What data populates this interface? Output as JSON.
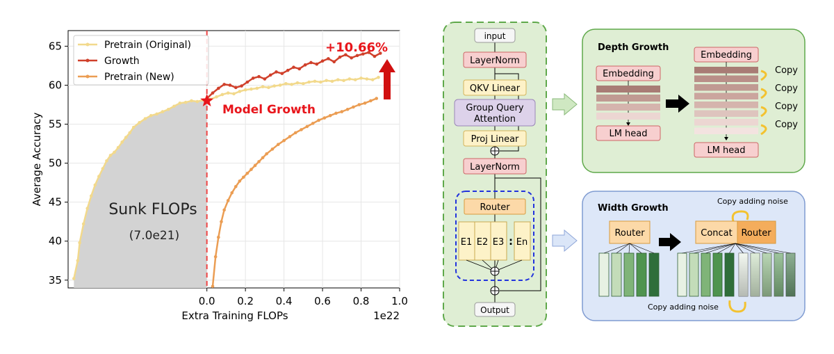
{
  "chart_data": {
    "type": "line",
    "title": "",
    "xlabel": "Extra Training FLOPs",
    "ylabel": "Average Accuracy",
    "x_offset_label": "1e22",
    "xlim": [
      -0.72,
      1.0
    ],
    "ylim": [
      34,
      67
    ],
    "xticks": [
      0.0,
      0.2,
      0.4,
      0.6,
      0.8,
      1.0
    ],
    "xtick_labels": [
      "0.0",
      "0.2",
      "0.4",
      "0.6",
      "0.8",
      "1.0"
    ],
    "yticks": [
      35,
      40,
      45,
      50,
      55,
      60,
      65
    ],
    "ytick_labels": [
      "35",
      "40",
      "45",
      "50",
      "55",
      "60",
      "65"
    ],
    "grid": true,
    "legend_position": "top-left",
    "series": [
      {
        "name": "Pretrain (Original)",
        "color": "#f2d98c",
        "x": [
          -0.69,
          -0.67,
          -0.66,
          -0.64,
          -0.62,
          -0.6,
          -0.58,
          -0.56,
          -0.54,
          -0.52,
          -0.5,
          -0.48,
          -0.46,
          -0.44,
          -0.42,
          -0.4,
          -0.38,
          -0.35,
          -0.32,
          -0.29,
          -0.26,
          -0.23,
          -0.2,
          -0.17,
          -0.14,
          -0.11,
          -0.08,
          -0.05,
          -0.02,
          0.0,
          0.02,
          0.05,
          0.08,
          0.11,
          0.14,
          0.17,
          0.2,
          0.23,
          0.26,
          0.29,
          0.32,
          0.35,
          0.38,
          0.41,
          0.44,
          0.47,
          0.5,
          0.53,
          0.56,
          0.59,
          0.62,
          0.65,
          0.68,
          0.71,
          0.74,
          0.77,
          0.8,
          0.83,
          0.86,
          0.89
        ],
        "values": [
          35.2,
          37.5,
          39.8,
          42.2,
          44.2,
          45.8,
          47.2,
          48.3,
          49.3,
          50.3,
          51.0,
          51.4,
          52.0,
          52.7,
          53.3,
          53.9,
          54.6,
          55.2,
          55.7,
          56.1,
          56.3,
          56.6,
          56.9,
          57.3,
          57.7,
          57.8,
          58.0,
          57.9,
          58.1,
          58.3,
          58.2,
          58.5,
          58.8,
          59.0,
          58.9,
          59.2,
          59.4,
          59.5,
          59.6,
          59.8,
          59.7,
          59.9,
          60.0,
          60.2,
          60.1,
          60.3,
          60.2,
          60.4,
          60.5,
          60.4,
          60.6,
          60.5,
          60.7,
          60.6,
          60.8,
          60.7,
          60.9,
          60.8,
          60.7,
          61.0
        ]
      },
      {
        "name": "Growth",
        "color": "#d0402b",
        "x": [
          0.0,
          0.03,
          0.06,
          0.09,
          0.12,
          0.15,
          0.18,
          0.21,
          0.24,
          0.27,
          0.3,
          0.33,
          0.36,
          0.39,
          0.42,
          0.45,
          0.48,
          0.51,
          0.54,
          0.57,
          0.6,
          0.63,
          0.66,
          0.69,
          0.72,
          0.75,
          0.78,
          0.81,
          0.84,
          0.87,
          0.9
        ],
        "values": [
          58.3,
          59.0,
          59.6,
          60.1,
          60.0,
          59.7,
          59.9,
          60.4,
          60.9,
          61.1,
          60.8,
          61.3,
          61.7,
          61.5,
          61.9,
          62.3,
          62.1,
          62.6,
          62.9,
          62.7,
          63.1,
          63.4,
          63.0,
          63.6,
          63.9,
          63.5,
          63.8,
          64.0,
          64.2,
          63.7,
          64.1
        ]
      },
      {
        "name": "Pretrain (New)",
        "color": "#eb9d53",
        "x": [
          0.03,
          0.045,
          0.06,
          0.075,
          0.09,
          0.11,
          0.13,
          0.15,
          0.17,
          0.19,
          0.21,
          0.23,
          0.25,
          0.27,
          0.29,
          0.31,
          0.34,
          0.37,
          0.4,
          0.43,
          0.46,
          0.49,
          0.52,
          0.55,
          0.58,
          0.61,
          0.64,
          0.67,
          0.7,
          0.73,
          0.76,
          0.79,
          0.82,
          0.85,
          0.88
        ],
        "values": [
          34.2,
          38.0,
          40.5,
          42.5,
          44.0,
          45.2,
          46.2,
          47.0,
          47.7,
          48.2,
          48.7,
          49.2,
          49.7,
          50.2,
          50.7,
          51.2,
          51.8,
          52.4,
          52.9,
          53.4,
          53.9,
          54.3,
          54.7,
          55.1,
          55.5,
          55.8,
          56.1,
          56.4,
          56.6,
          56.9,
          57.2,
          57.5,
          57.7,
          58.0,
          58.3
        ]
      }
    ],
    "annotations": [
      {
        "text": "Model Growth",
        "x": 0.0,
        "y": 58.0,
        "color": "#e8151b"
      },
      {
        "text": "+10.66%",
        "color": "#e8151b"
      },
      {
        "text": "Sunk FLOPs"
      },
      {
        "text": "(7.0e21)"
      }
    ]
  },
  "arch": {
    "input": "input",
    "layernorm1": "LayerNorm",
    "qkv": "QKV Linear",
    "gqa_line1": "Group Query",
    "gqa_line2": "Attention",
    "proj": "Proj Linear",
    "layernorm2": "LayerNorm",
    "router": "Router",
    "experts": [
      "E1",
      "E2",
      "E3",
      "En"
    ],
    "dots": ":",
    "plus": "⊕",
    "output": "Output"
  },
  "depth": {
    "title": "Depth Growth",
    "embedding_left": "Embedding",
    "lmhead_left": "LM head",
    "embedding_right": "Embedding",
    "lmhead_right": "LM head",
    "copy_labels": [
      "Copy",
      "Copy",
      "Copy",
      "Copy"
    ]
  },
  "width": {
    "title": "Width Growth",
    "router_left": "Router",
    "concat": "Concat",
    "router_right": "Router",
    "noise_top": "Copy adding noise",
    "noise_bottom": "Copy adding noise"
  },
  "colors": {
    "green_panel": "#dfeed4",
    "green_border": "#5fa84a",
    "blue_panel": "#dde7f8",
    "blue_border": "#7f9bd1",
    "red_box": "#f7cfcf",
    "yellow_box": "#fdf2c8",
    "purple_box": "#ddd2ea",
    "orange_box": "#fcd9a8",
    "accent_red": "#e8151b"
  }
}
